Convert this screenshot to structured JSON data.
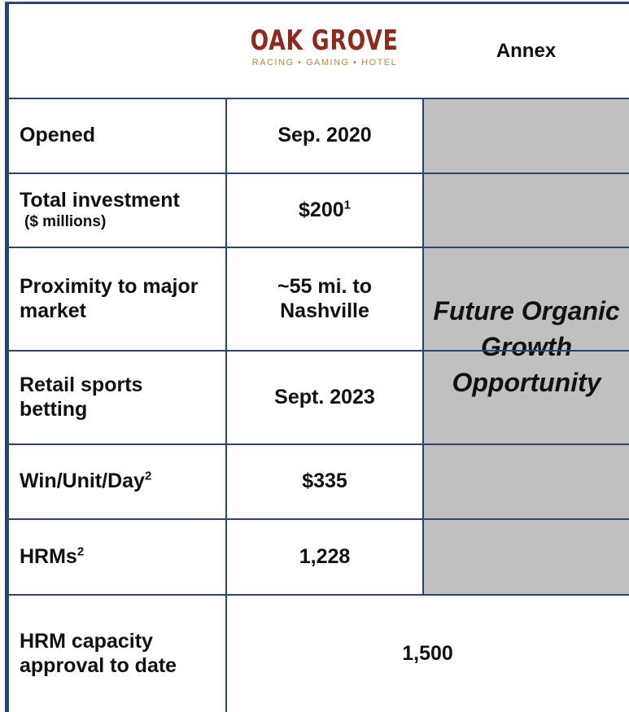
{
  "header": {
    "logo": {
      "name": "OAK GROVE",
      "tagline": "RACING • GAMING • HOTEL"
    },
    "annex": "Annex"
  },
  "table": {
    "rows": [
      {
        "label": "Opened",
        "value": "Sep. 2020"
      },
      {
        "label": "Total investment",
        "sublabel": "($ millions)",
        "value": "$200",
        "value_note": "1"
      },
      {
        "label": "Proximity to major market",
        "value": "~55 mi. to Nashville"
      },
      {
        "label": "Retail sports betting",
        "value": "Sept. 2023"
      },
      {
        "label": "Win/Unit/Day",
        "label_note": "2",
        "value": "$335"
      },
      {
        "label": "HRMs",
        "label_note": "2",
        "value": "1,228"
      }
    ],
    "annex_note": "Future Organic Growth Opportunity",
    "footer_row": {
      "label": "HRM capacity approval to date",
      "value": "1,500"
    }
  }
}
